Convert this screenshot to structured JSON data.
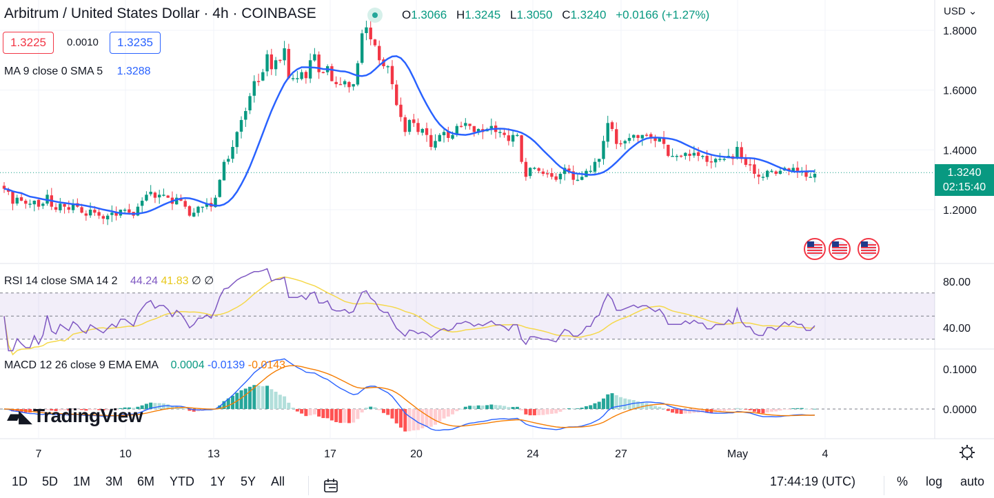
{
  "header": {
    "title": "Arbitrum / United States Dollar · 4h · COINBASE",
    "ohlc": [
      {
        "k": "O",
        "v": "1.3066"
      },
      {
        "k": "H",
        "v": "1.3245"
      },
      {
        "k": "L",
        "v": "1.3050"
      },
      {
        "k": "C",
        "v": "1.3240"
      }
    ],
    "change": "+0.0166 (+1.27%)"
  },
  "quote": {
    "bid": "1.3225",
    "spread": "0.0010",
    "ask": "1.3235"
  },
  "ma_legend": {
    "label": "MA 9 close 0 SMA 5",
    "value": "1.3288"
  },
  "rsi_legend": {
    "label": "RSI 14 close SMA 14 2",
    "rsi": "44.24",
    "sma": "41.83",
    "extra": "∅ ∅"
  },
  "macd_legend": {
    "label": "MACD 12 26 close 9 EMA EMA",
    "hist": "0.0004",
    "macd": "-0.0139",
    "signal": "-0.0143"
  },
  "currency": "USD",
  "price_label": {
    "price": "1.3240",
    "countdown": "02:15:40"
  },
  "logo": "TradingView",
  "time": "17:44:19 (UTC)",
  "ranges": [
    "1D",
    "5D",
    "1M",
    "3M",
    "6M",
    "YTD",
    "1Y",
    "5Y",
    "All"
  ],
  "right_controls": [
    "%",
    "log",
    "auto"
  ],
  "colors": {
    "up": "#089981",
    "down": "#f23645",
    "ma": "#2962ff",
    "rsi": "#7e57c2",
    "rsi_sma": "#f5d84a",
    "macd": "#2962ff",
    "signal": "#f57c00"
  },
  "chart_data": {
    "type": "candlestick",
    "price_axis": {
      "ticks": [
        1.8,
        1.6,
        1.4,
        1.2
      ],
      "labels": [
        "1.8000",
        "1.6000",
        "1.4000",
        "1.2000"
      ]
    },
    "rsi_axis": {
      "ticks": [
        80,
        40
      ],
      "labels": [
        "80.00",
        "40.00"
      ],
      "band": [
        30,
        70
      ],
      "mid": 50
    },
    "macd_axis": {
      "ticks": [
        0.1,
        0
      ],
      "labels": [
        "0.1000",
        "0.0000"
      ]
    },
    "x_labels": [
      "7",
      "10",
      "13",
      "17",
      "20",
      "24",
      "27",
      "May",
      "4"
    ],
    "closes": [
      1.27,
      1.26,
      1.22,
      1.24,
      1.23,
      1.22,
      1.22,
      1.23,
      1.21,
      1.22,
      1.25,
      1.21,
      1.2,
      1.22,
      1.21,
      1.2,
      1.22,
      1.21,
      1.19,
      1.18,
      1.2,
      1.19,
      1.18,
      1.17,
      1.18,
      1.19,
      1.18,
      1.2,
      1.2,
      1.19,
      1.18,
      1.21,
      1.23,
      1.25,
      1.26,
      1.24,
      1.25,
      1.25,
      1.24,
      1.22,
      1.24,
      1.23,
      1.21,
      1.18,
      1.19,
      1.21,
      1.21,
      1.22,
      1.21,
      1.24,
      1.3,
      1.36,
      1.37,
      1.41,
      1.46,
      1.5,
      1.53,
      1.58,
      1.63,
      1.63,
      1.66,
      1.72,
      1.67,
      1.7,
      1.7,
      1.74,
      1.64,
      1.64,
      1.64,
      1.66,
      1.64,
      1.7,
      1.72,
      1.66,
      1.66,
      1.68,
      1.63,
      1.62,
      1.62,
      1.63,
      1.61,
      1.62,
      1.69,
      1.79,
      1.81,
      1.77,
      1.75,
      1.7,
      1.68,
      1.68,
      1.62,
      1.55,
      1.51,
      1.46,
      1.5,
      1.49,
      1.46,
      1.47,
      1.45,
      1.41,
      1.43,
      1.45,
      1.46,
      1.44,
      1.45,
      1.48,
      1.48,
      1.49,
      1.48,
      1.46,
      1.47,
      1.46,
      1.47,
      1.48,
      1.46,
      1.46,
      1.45,
      1.43,
      1.45,
      1.45,
      1.36,
      1.31,
      1.34,
      1.34,
      1.33,
      1.32,
      1.32,
      1.31,
      1.3,
      1.32,
      1.34,
      1.33,
      1.3,
      1.3,
      1.31,
      1.33,
      1.33,
      1.36,
      1.37,
      1.43,
      1.49,
      1.47,
      1.42,
      1.42,
      1.43,
      1.44,
      1.45,
      1.44,
      1.45,
      1.45,
      1.44,
      1.43,
      1.44,
      1.42,
      1.38,
      1.38,
      1.38,
      1.38,
      1.39,
      1.38,
      1.39,
      1.38,
      1.38,
      1.36,
      1.36,
      1.37,
      1.37,
      1.37,
      1.38,
      1.37,
      1.41,
      1.37,
      1.35,
      1.35,
      1.32,
      1.31,
      1.31,
      1.33,
      1.33,
      1.32,
      1.33,
      1.34,
      1.33,
      1.34,
      1.33,
      1.33,
      1.31,
      1.31,
      1.32
    ],
    "ma_last": 1.3288,
    "last_price": 1.324
  }
}
